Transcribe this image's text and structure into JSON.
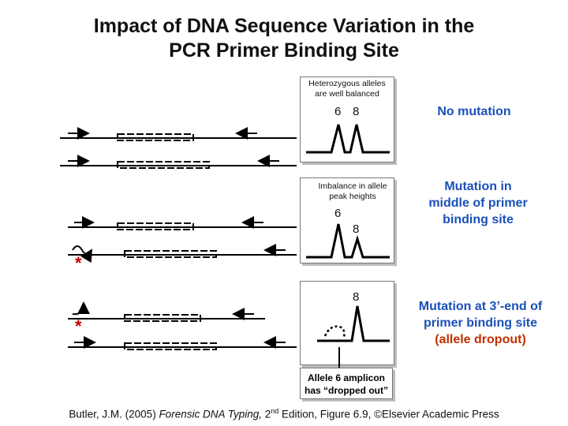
{
  "title": {
    "line1": "Impact of DNA Sequence Variation in the",
    "line2": "PCR Primer Binding Site"
  },
  "panels": [
    {
      "box_label_1": "Heterozygous alleles",
      "box_label_2": "are well balanced",
      "peak_6": "6",
      "peak_8": "8",
      "description": "No mutation"
    },
    {
      "box_label_1": "Imbalance in allele",
      "box_label_2": "peak heights",
      "peak_6": "6",
      "peak_8": "8",
      "description_1": "Mutation in",
      "description_2": "middle of primer",
      "description_3": "binding site"
    },
    {
      "peak_8": "8",
      "description_1": "Mutation at 3’-end of",
      "description_2": "primer binding site",
      "description_3": "(allele dropout)"
    }
  ],
  "mutation_marker": "*",
  "callout": {
    "line1": "Allele 6 amplicon",
    "line2": "has “dropped out”"
  },
  "citation": {
    "author": "Butler, J.M. (2005) ",
    "book": "Forensic DNA Typing, ",
    "edition_num": "2",
    "edition_sup": "nd",
    "rest": " Edition, Figure 6.9, ©Elsevier Academic Press"
  },
  "colors": {
    "blue_text": "#1a50b8",
    "red_text": "#c03000",
    "marker": "#c00000"
  }
}
